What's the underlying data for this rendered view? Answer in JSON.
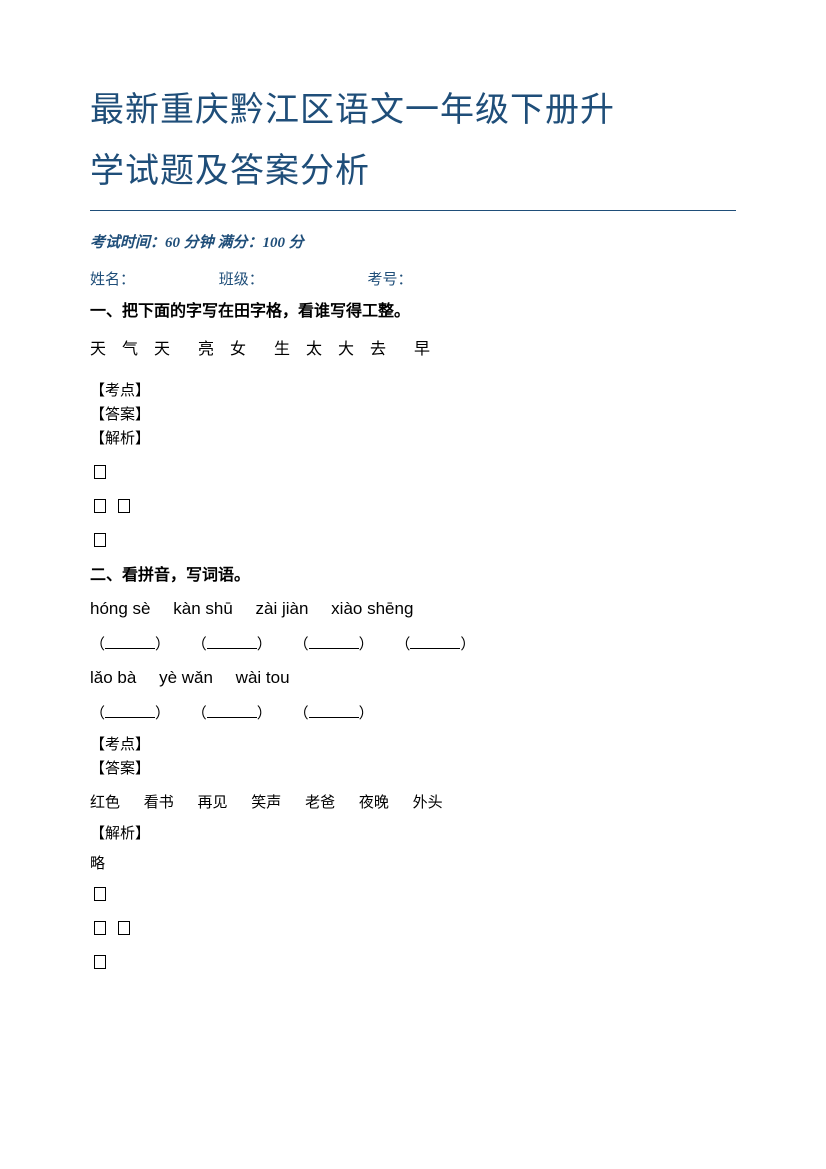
{
  "title_line1": "最新重庆黔江区语文一年级下册升",
  "title_line2": "学试题及答案分析",
  "exam_info": "考试时间：60 分钟 满分：100 分",
  "name_label": "姓名：",
  "class_label": "班级：",
  "id_label": "考号：",
  "section1": {
    "title": "一、把下面的字写在田字格，看谁写得工整。",
    "chars": "天 气 天　亮 女　生 太 大 去　早",
    "kaodian": "【考点】",
    "daan": "【答案】",
    "jiexi": "【解析】"
  },
  "section2": {
    "title": "二、看拼音，写词语。",
    "pinyin1": {
      "p1": "hóng sè",
      "p2": "kàn shū",
      "p3": "zài jiàn",
      "p4": "xiào shēng"
    },
    "pinyin2": {
      "p1": "lǎo bà",
      "p2": "yè wǎn",
      "p3": "wài tou"
    },
    "kaodian": "【考点】",
    "daan": "【答案】",
    "answers": {
      "a1": "红色",
      "a2": "看书",
      "a3": "再见",
      "a4": "笑声",
      "a5": "老爸",
      "a6": "夜晚",
      "a7": "外头"
    },
    "jiexi": "【解析】",
    "jiexi_text": "略"
  }
}
